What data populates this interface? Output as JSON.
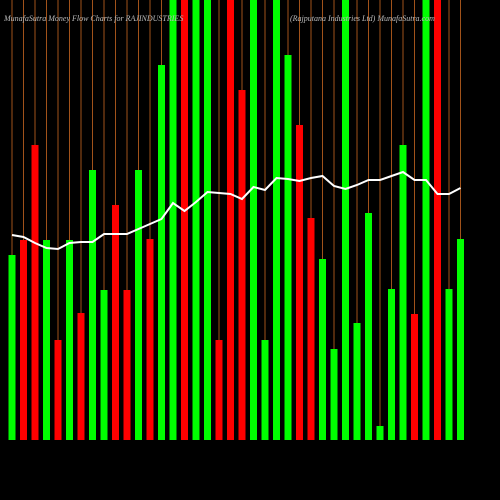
{
  "chart_data": {
    "type": "bar",
    "title": "MunafaSutra  Money  Flow  Charts for RAJINDUSTRIES",
    "subtitle": "(Rajputana  Industries Ltd) MunafaSutra.com",
    "categories": [
      null,
      null,
      null,
      null,
      null,
      null,
      null,
      null,
      null,
      null,
      null,
      null,
      null,
      null,
      null,
      null,
      null,
      null,
      null,
      null,
      null,
      null,
      null,
      null,
      null,
      null,
      null,
      null,
      null,
      null,
      null,
      null,
      null,
      null,
      null,
      null,
      null,
      null,
      null,
      null
    ],
    "series": [
      {
        "name": "money flow",
        "values": [
          185,
          200,
          295,
          200,
          100,
          200,
          127,
          270,
          150,
          235,
          150,
          270,
          201,
          375,
          440,
          440,
          440,
          440,
          100,
          440,
          350,
          440,
          100,
          440,
          385,
          315,
          222,
          181,
          91,
          440,
          117,
          227,
          14,
          151,
          295,
          126,
          440,
          440,
          151,
          201
        ],
        "colors": [
          "#00ff00",
          "#ff0000",
          "#ff0000",
          "#00ff00",
          "#ff0000",
          "#00ff00",
          "#ff0000",
          "#00ff00",
          "#00ff00",
          "#ff0000",
          "#ff0000",
          "#00ff00",
          "#ff0000",
          "#00ff00",
          "#00ff00",
          "#ff0000",
          "#00ff00",
          "#00ff00",
          "#ff0000",
          "#ff0000",
          "#ff0000",
          "#00ff00",
          "#00ff00",
          "#00ff00",
          "#00ff00",
          "#ff0000",
          "#ff0000",
          "#00ff00",
          "#00ff00",
          "#00ff00",
          "#00ff00",
          "#00ff00",
          "#00ff00",
          "#00ff00",
          "#00ff00",
          "#ff0000",
          "#00ff00",
          "#ff0000",
          "#00ff00",
          "#00ff00"
        ]
      },
      {
        "name": "price",
        "color": "#ffffff",
        "values": [
          205,
          203,
          197,
          192,
          191,
          197,
          198,
          198,
          206,
          206,
          206,
          211,
          216,
          221,
          237,
          229,
          238,
          248,
          247,
          246,
          241,
          253,
          250,
          262,
          261,
          259,
          262,
          264,
          254,
          251,
          255,
          260,
          260,
          264,
          268,
          260,
          260,
          246,
          246,
          252
        ]
      }
    ]
  }
}
